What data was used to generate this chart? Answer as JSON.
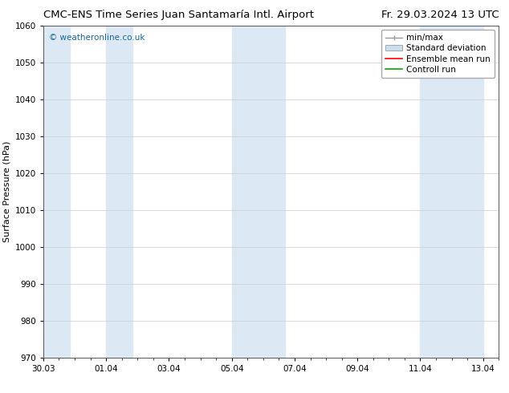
{
  "title_left": "CMC-ENS Time Series Juan Santamaría Intl. Airport",
  "title_right": "Fr. 29.03.2024 13 UTC",
  "ylabel": "Surface Pressure (hPa)",
  "ylim": [
    970,
    1060
  ],
  "yticks": [
    970,
    980,
    990,
    1000,
    1010,
    1020,
    1030,
    1040,
    1050,
    1060
  ],
  "xtick_labels": [
    "30.03",
    "01.04",
    "03.04",
    "05.04",
    "07.04",
    "09.04",
    "11.04",
    "13.04"
  ],
  "xtick_positions": [
    0,
    2,
    4,
    6,
    8,
    10,
    12,
    14
  ],
  "watermark": "© weatheronline.co.uk",
  "watermark_color": "#1a6699",
  "background_color": "#ffffff",
  "plot_bg_color": "#ffffff",
  "shaded_bands": [
    {
      "x_start": 0,
      "x_end": 0.85,
      "color": "#dce9f5"
    },
    {
      "x_start": 2,
      "x_end": 2.85,
      "color": "#dce9f5"
    },
    {
      "x_start": 6.0,
      "x_end": 7.7,
      "color": "#dce9f5"
    },
    {
      "x_start": 12.0,
      "x_end": 14.0,
      "color": "#dce9f5"
    }
  ],
  "legend_entries": [
    {
      "label": "min/max",
      "color": "#aaaaaa",
      "type": "minmax"
    },
    {
      "label": "Standard deviation",
      "color": "#c8dff0",
      "type": "box"
    },
    {
      "label": "Ensemble mean run",
      "color": "#ff0000",
      "type": "line"
    },
    {
      "label": "Controll run",
      "color": "#00aa00",
      "type": "line"
    }
  ],
  "title_fontsize": 9.5,
  "axis_label_fontsize": 8,
  "tick_fontsize": 7.5,
  "legend_fontsize": 7.5
}
